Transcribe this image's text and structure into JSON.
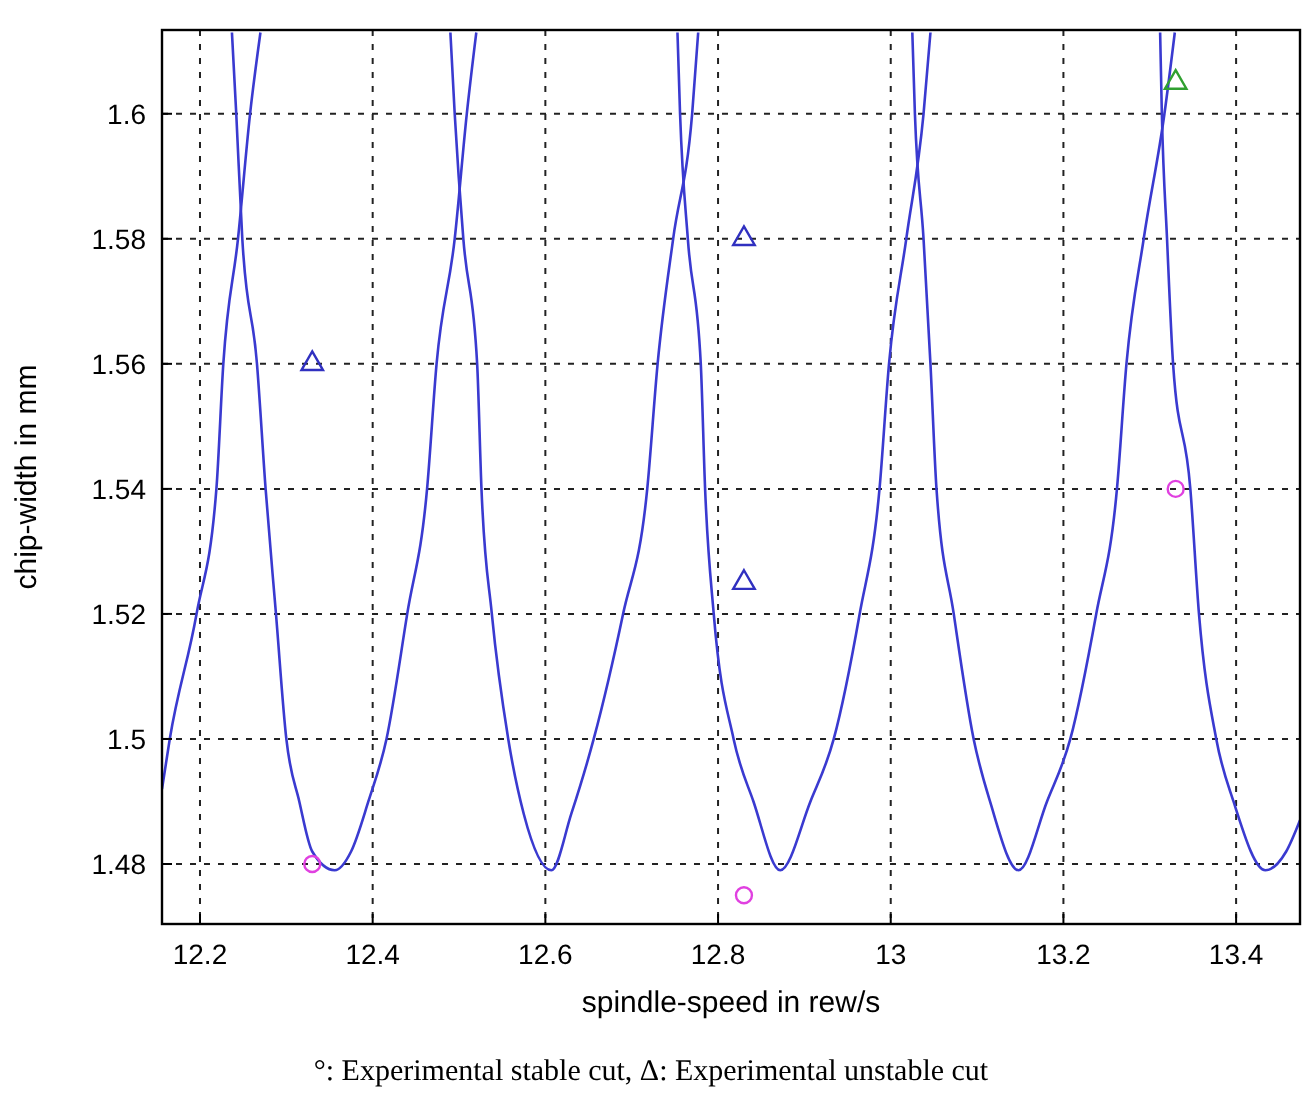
{
  "chart_data": {
    "type": "line",
    "xlabel": "spindle-speed in rew/s",
    "ylabel": "chip-width in mm",
    "annotations": [
      "°: Experimental stable cut,  Δ: Experimental unstable cut"
    ],
    "xlim": [
      12.156,
      13.474
    ],
    "ylim": [
      1.4704,
      1.6134
    ],
    "xticks": [
      12.2,
      12.4,
      12.6,
      12.8,
      13,
      13.2,
      13.4
    ],
    "yticks": [
      1.48,
      1.5,
      1.52,
      1.54,
      1.56,
      1.58,
      1.6
    ],
    "grid": true,
    "series": [
      {
        "color": "#3a3ad0",
        "x": [
          12.156,
          12.165,
          12.196,
          12.219,
          12.227,
          12.244,
          12.258,
          12.27
        ],
        "values": [
          1.492,
          1.5,
          1.52,
          1.54,
          1.56,
          1.58,
          1.6,
          1.613
        ]
      },
      {
        "color": "#3a3ad0",
        "x": [
          12.237,
          12.242,
          12.249,
          12.266,
          12.276,
          12.288,
          12.3,
          12.315,
          12.33,
          12.356,
          12.375,
          12.395,
          12.416,
          12.44,
          12.463,
          12.474,
          12.495,
          12.509,
          12.52
        ],
        "values": [
          1.613,
          1.6,
          1.58,
          1.56,
          1.54,
          1.52,
          1.5,
          1.49,
          1.482,
          1.479,
          1.482,
          1.49,
          1.5,
          1.52,
          1.54,
          1.56,
          1.58,
          1.6,
          1.613
        ]
      },
      {
        "color": "#3a3ad0",
        "x": [
          12.49,
          12.495,
          12.505,
          12.521,
          12.526,
          12.538,
          12.557,
          12.575,
          12.607,
          12.63,
          12.656,
          12.69,
          12.718,
          12.73,
          12.748,
          12.77,
          12.777
        ],
        "values": [
          1.613,
          1.6,
          1.58,
          1.56,
          1.54,
          1.52,
          1.5,
          1.488,
          1.479,
          1.488,
          1.5,
          1.52,
          1.54,
          1.56,
          1.58,
          1.6,
          1.613
        ]
      },
      {
        "color": "#3a3ad0",
        "x": [
          12.753,
          12.756,
          12.765,
          12.78,
          12.785,
          12.795,
          12.818,
          12.841,
          12.872,
          12.907,
          12.934,
          12.964,
          12.987,
          12.998,
          13.018,
          13.038,
          13.046
        ],
        "values": [
          1.613,
          1.6,
          1.58,
          1.56,
          1.54,
          1.52,
          1.5,
          1.49,
          1.479,
          1.49,
          1.5,
          1.52,
          1.54,
          1.56,
          1.58,
          1.6,
          1.613
        ]
      },
      {
        "color": "#3a3ad0",
        "x": [
          13.025,
          13.028,
          13.038,
          13.046,
          13.053,
          13.073,
          13.096,
          13.115,
          13.148,
          13.181,
          13.208,
          13.238,
          13.262,
          13.273,
          13.293,
          13.317,
          13.329
        ],
        "values": [
          1.613,
          1.6,
          1.58,
          1.56,
          1.54,
          1.52,
          1.5,
          1.49,
          1.479,
          1.49,
          1.5,
          1.52,
          1.54,
          1.56,
          1.58,
          1.6,
          1.613
        ]
      },
      {
        "color": "#3a3ad0",
        "x": [
          13.312,
          13.314,
          13.32,
          13.327,
          13.347,
          13.357,
          13.377,
          13.397,
          13.434,
          13.458,
          13.474
        ],
        "values": [
          1.613,
          1.6,
          1.58,
          1.56,
          1.54,
          1.52,
          1.5,
          1.49,
          1.479,
          1.482,
          1.487
        ]
      },
      {
        "type": "scatter",
        "marker": "circle",
        "color": "#e040e0",
        "x": [
          12.33,
          12.83,
          13.33
        ],
        "values": [
          1.48,
          1.475,
          1.54
        ]
      },
      {
        "type": "scatter",
        "marker": "triangle",
        "color": "#3030c0",
        "x": [
          12.33,
          12.83,
          12.83
        ],
        "values": [
          1.56,
          1.58,
          1.525
        ]
      },
      {
        "type": "scatter",
        "marker": "triangle",
        "color": "#30a030",
        "x": [
          13.33
        ],
        "values": [
          1.605
        ]
      }
    ]
  }
}
